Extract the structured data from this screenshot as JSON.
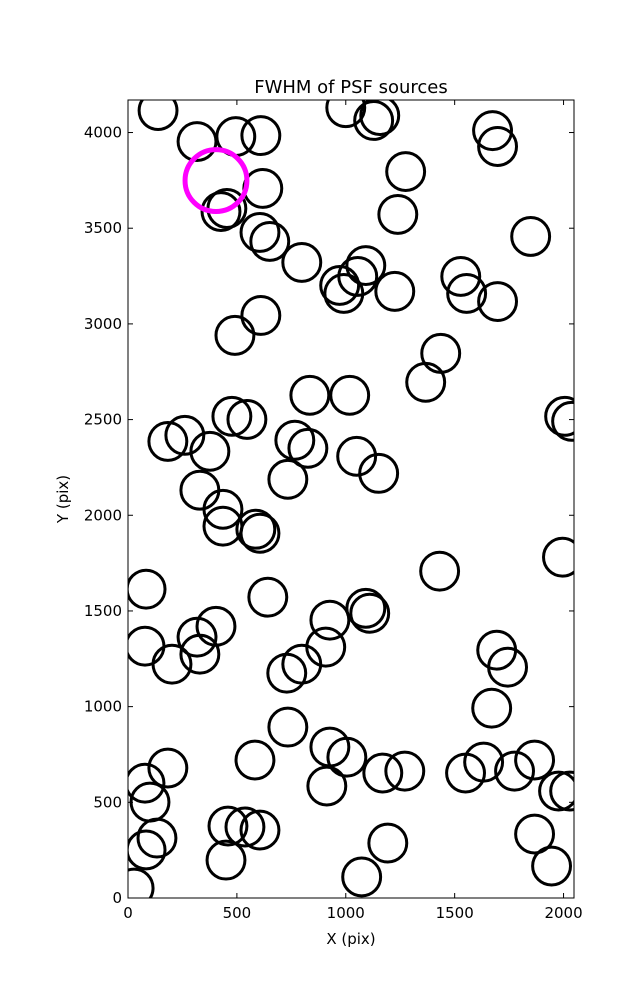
{
  "chart_data": {
    "type": "scatter",
    "title": "FWHM of PSF sources",
    "x_label": "X (pix)",
    "y_label": "Y (pix)",
    "xlim": [
      0,
      2048
    ],
    "ylim": [
      0,
      4170
    ],
    "xticks": [
      0,
      500,
      1000,
      1500,
      2000
    ],
    "yticks": [
      0,
      500,
      1000,
      1500,
      2000,
      2500,
      3000,
      3500,
      4000
    ],
    "series": [
      {
        "color": "#000000",
        "marker_radius": 87,
        "x": [
          138,
          317,
          495,
          610,
          1000,
          1128,
          1156,
          1674,
          1697,
          1275,
          619,
          427,
          454,
          1239,
          606,
          651,
          1849,
          798,
          1092,
          1055,
          972,
          991,
          1528,
          1555,
          1697,
          1225,
          610,
          491,
          1436,
          1367,
          835,
          1018,
          477,
          546,
          261,
          183,
          376,
          766,
          826,
          1050,
          1151,
          734,
          2005,
          2037,
          330,
          436,
          436,
          587,
          606,
          1995,
          83,
          1431,
          642,
          1092,
          1110,
          927,
          404,
          317,
          78,
          330,
          202,
          908,
          798,
          729,
          1693,
          1743,
          1670,
          734,
          583,
          927,
          1005,
          913,
          1170,
          1271,
          1550,
          1633,
          1775,
          1867,
          1977,
          2028,
          183,
          78,
          101,
          133,
          83,
          28,
          459,
          537,
          606,
          450,
          1193,
          1073,
          1867,
          1945
        ],
        "values": [
          4115,
          3953,
          3979,
          3984,
          4130,
          4063,
          4089,
          4010,
          3927,
          3796,
          3708,
          3587,
          3603,
          3572,
          3478,
          3431,
          3457,
          3321,
          3305,
          3248,
          3201,
          3159,
          3248,
          3159,
          3117,
          3170,
          3044,
          2940,
          2846,
          2695,
          2627,
          2627,
          2517,
          2501,
          2418,
          2386,
          2334,
          2392,
          2350,
          2308,
          2219,
          2188,
          2517,
          2491,
          2131,
          2031,
          1943,
          1927,
          1906,
          1781,
          1614,
          1708,
          1572,
          1514,
          1488,
          1452,
          1420,
          1363,
          1316,
          1274,
          1222,
          1311,
          1222,
          1175,
          1295,
          1206,
          992,
          893,
          721,
          789,
          736,
          585,
          653,
          663,
          653,
          710,
          663,
          721,
          559,
          559,
          679,
          600,
          501,
          313,
          251,
          52,
          376,
          371,
          355,
          198,
          287,
          110,
          334,
          167
        ]
      },
      {
        "color": "#ff00ff",
        "marker_radius": 142,
        "x": [
          404
        ],
        "values": [
          3749
        ]
      }
    ]
  }
}
